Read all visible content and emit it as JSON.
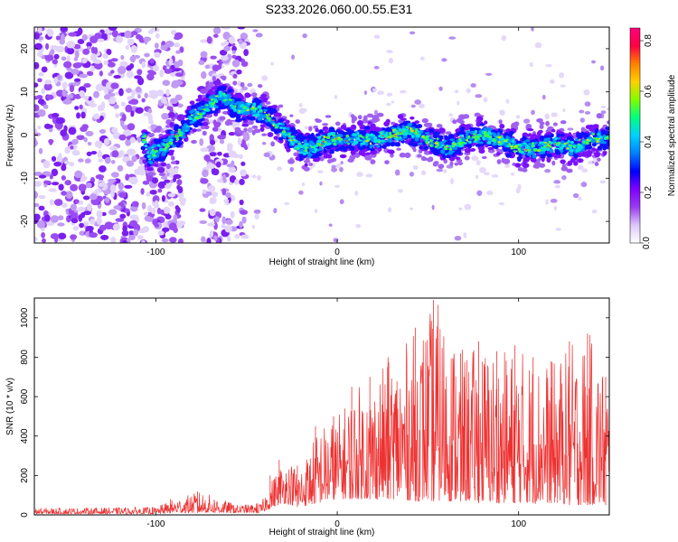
{
  "title": "S233.2026.060.00.55.E31",
  "chart_data": [
    {
      "type": "heatmap",
      "xlabel": "Height of straight line (km)",
      "ylabel": "Frequency (Hz)",
      "xlim": [
        -167,
        150
      ],
      "ylim": [
        -25,
        25
      ],
      "xticks": [
        -100,
        0,
        100
      ],
      "yticks": [
        -20,
        -10,
        0,
        10,
        20
      ],
      "colorbar": {
        "label": "Normalized spectral amplitude",
        "range": [
          0.0,
          0.85
        ],
        "ticks": [
          "0.0",
          "0.2",
          "0.4",
          "0.6",
          "0.8"
        ],
        "tick_values": [
          0.0,
          0.2,
          0.4,
          0.6,
          0.8
        ],
        "colors": [
          "#ffffff",
          "#dcc8f8",
          "#9a3cf0",
          "#7f00ff",
          "#0000ff",
          "#0080ff",
          "#00d0ff",
          "#00ff80",
          "#80ff00",
          "#ffd000",
          "#ff8000",
          "#ff0040",
          "#ff0080"
        ]
      },
      "ridge": [
        {
          "x": -105,
          "f": -5
        },
        {
          "x": -95,
          "f": -3
        },
        {
          "x": -85,
          "f": 1
        },
        {
          "x": -80,
          "f": 4
        },
        {
          "x": -75,
          "f": 5
        },
        {
          "x": -70,
          "f": 7
        },
        {
          "x": -65,
          "f": 9
        },
        {
          "x": -60,
          "f": 8
        },
        {
          "x": -55,
          "f": 6
        },
        {
          "x": -50,
          "f": 6
        },
        {
          "x": -45,
          "f": 6
        },
        {
          "x": -40,
          "f": 5
        },
        {
          "x": -35,
          "f": 3
        },
        {
          "x": -30,
          "f": 1
        },
        {
          "x": -25,
          "f": -1
        },
        {
          "x": -20,
          "f": -3
        },
        {
          "x": -15,
          "f": -3
        },
        {
          "x": -10,
          "f": -2
        },
        {
          "x": -5,
          "f": -1
        },
        {
          "x": 0,
          "f": -1
        },
        {
          "x": 10,
          "f": -1
        },
        {
          "x": 20,
          "f": -1
        },
        {
          "x": 30,
          "f": 0
        },
        {
          "x": 40,
          "f": 1
        },
        {
          "x": 50,
          "f": -1
        },
        {
          "x": 60,
          "f": -3
        },
        {
          "x": 70,
          "f": -1
        },
        {
          "x": 80,
          "f": 0
        },
        {
          "x": 90,
          "f": -1
        },
        {
          "x": 100,
          "f": -3
        },
        {
          "x": 110,
          "f": -3
        },
        {
          "x": 120,
          "f": -2
        },
        {
          "x": 130,
          "f": -3
        },
        {
          "x": 140,
          "f": -1
        },
        {
          "x": 150,
          "f": -1
        }
      ],
      "noise_regions": [
        {
          "x_from": -167,
          "x_to": -85,
          "density": "high"
        },
        {
          "x_from": -75,
          "x_to": -50,
          "density": "high"
        }
      ]
    },
    {
      "type": "line",
      "xlabel": "Height of straight line (km)",
      "ylabel": "SNR (10 * v/v)",
      "xlim": [
        -167,
        150
      ],
      "ylim": [
        0,
        1100
      ],
      "xticks": [
        -100,
        0,
        100
      ],
      "yticks": [
        0,
        200,
        400,
        600,
        800,
        1000
      ],
      "color": "#ee3030",
      "envelope": [
        {
          "x": -167,
          "lo": 5,
          "hi": 35
        },
        {
          "x": -100,
          "lo": 5,
          "hi": 40
        },
        {
          "x": -90,
          "lo": 10,
          "hi": 80
        },
        {
          "x": -75,
          "lo": 10,
          "hi": 120
        },
        {
          "x": -55,
          "lo": 10,
          "hi": 50
        },
        {
          "x": -42,
          "lo": 10,
          "hi": 60
        },
        {
          "x": -35,
          "lo": 40,
          "hi": 200
        },
        {
          "x": -30,
          "lo": 60,
          "hi": 280
        },
        {
          "x": -20,
          "lo": 40,
          "hi": 250
        },
        {
          "x": -10,
          "lo": 60,
          "hi": 450
        },
        {
          "x": 0,
          "lo": 80,
          "hi": 500
        },
        {
          "x": 10,
          "lo": 80,
          "hi": 650
        },
        {
          "x": 20,
          "lo": 80,
          "hi": 700
        },
        {
          "x": 30,
          "lo": 80,
          "hi": 800
        },
        {
          "x": 45,
          "lo": 70,
          "hi": 950
        },
        {
          "x": 55,
          "lo": 70,
          "hi": 1090
        },
        {
          "x": 70,
          "lo": 70,
          "hi": 820
        },
        {
          "x": 80,
          "lo": 60,
          "hi": 880
        },
        {
          "x": 90,
          "lo": 60,
          "hi": 830
        },
        {
          "x": 100,
          "lo": 60,
          "hi": 860
        },
        {
          "x": 110,
          "lo": 60,
          "hi": 800
        },
        {
          "x": 120,
          "lo": 60,
          "hi": 780
        },
        {
          "x": 130,
          "lo": 50,
          "hi": 880
        },
        {
          "x": 140,
          "lo": 50,
          "hi": 920
        },
        {
          "x": 150,
          "lo": 50,
          "hi": 700
        }
      ]
    }
  ]
}
